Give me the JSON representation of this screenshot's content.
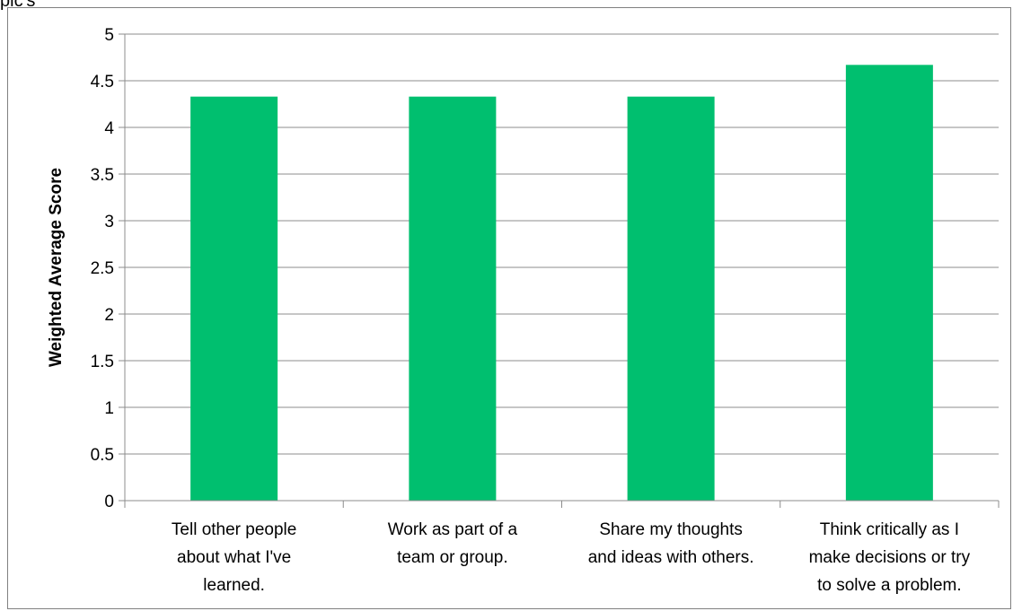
{
  "fragment_text": "pic's",
  "chart_data": {
    "type": "bar",
    "title": "",
    "xlabel": "",
    "ylabel": "Weighted Average Score",
    "ylim": [
      0,
      5
    ],
    "yticks": [
      "0",
      "0.5",
      "1",
      "1.5",
      "2",
      "2.5",
      "3",
      "3.5",
      "4",
      "4.5",
      "5"
    ],
    "grid": true,
    "legend": "none",
    "bar_color": "#00BF6F",
    "categories": [
      [
        "Tell other people",
        "about what I've",
        "learned."
      ],
      [
        "Work as part of a",
        "team or group."
      ],
      [
        "Share my thoughts",
        "and ideas with others."
      ],
      [
        "Think critically as I",
        "make decisions or try",
        "to solve a problem."
      ]
    ],
    "values": [
      4.33,
      4.33,
      4.33,
      4.67
    ]
  }
}
